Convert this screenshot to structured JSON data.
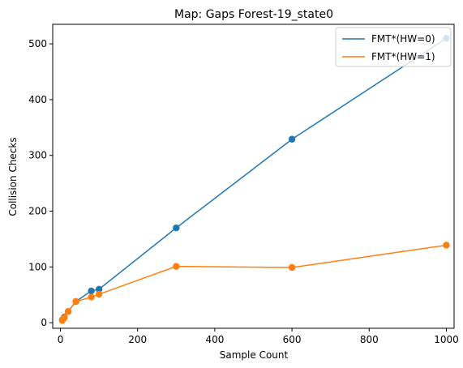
{
  "chart_data": {
    "type": "line",
    "title": "Map: Gaps Forest-19_state0",
    "xlabel": "Sample Count",
    "ylabel": "Collision Checks",
    "xlim": [
      -20,
      1020
    ],
    "ylim": [
      -10,
      535
    ],
    "xticks": [
      0,
      200,
      400,
      600,
      800,
      1000
    ],
    "yticks": [
      0,
      100,
      200,
      300,
      400,
      500
    ],
    "grid": false,
    "legend_position": "top-right",
    "series": [
      {
        "name": "FMT*(HW=0)",
        "color": "#1f77b4",
        "x": [
          5,
          10,
          20,
          40,
          80,
          100,
          300,
          600,
          1000
        ],
        "y": [
          5,
          10,
          20,
          38,
          57,
          60,
          170,
          329,
          510
        ]
      },
      {
        "name": "FMT*(HW=1)",
        "color": "#ff7f0e",
        "x": [
          5,
          10,
          20,
          40,
          80,
          100,
          300,
          600,
          1000
        ],
        "y": [
          4,
          9,
          20,
          38,
          46,
          51,
          101,
          99,
          139
        ]
      }
    ]
  }
}
